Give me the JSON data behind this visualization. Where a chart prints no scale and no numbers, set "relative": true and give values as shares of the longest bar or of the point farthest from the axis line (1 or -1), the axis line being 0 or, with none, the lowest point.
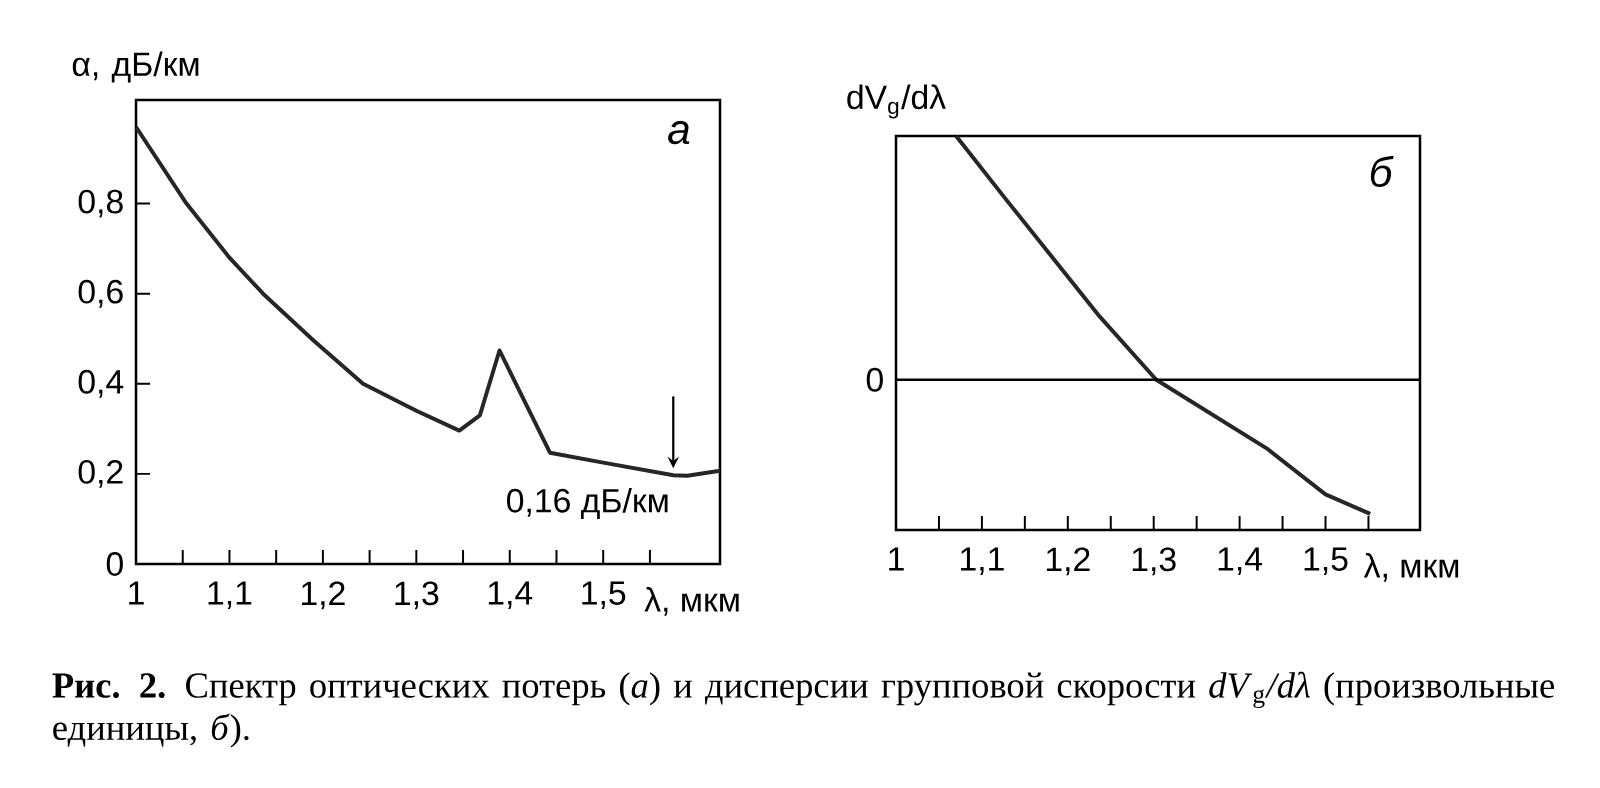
{
  "chart_data": [
    {
      "type": "line",
      "ylabel": "α, дБ/км",
      "xlabel": "λ, мкм",
      "x": [
        1.0,
        1.054,
        1.1,
        1.136,
        1.19,
        1.243,
        1.3,
        1.346,
        1.368,
        1.389,
        1.443,
        1.5,
        1.575,
        1.59,
        1.625
      ],
      "series": [
        {
          "color": "#262626",
          "values": [
            0.97,
            0.8,
            0.68,
            0.6,
            0.496,
            0.4,
            0.34,
            0.296,
            0.33,
            0.474,
            0.247,
            0.225,
            0.197,
            0.196,
            0.207
          ]
        }
      ],
      "xlim": [
        1,
        1.625
      ],
      "ylim": [
        0,
        1.03
      ],
      "xticks": [
        {
          "value": 1,
          "label": "1"
        },
        {
          "value": 1.05,
          "label": null
        },
        {
          "value": 1.1,
          "label": "1,1"
        },
        {
          "value": 1.15,
          "label": null
        },
        {
          "value": 1.2,
          "label": "1,2"
        },
        {
          "value": 1.25,
          "label": null
        },
        {
          "value": 1.3,
          "label": "1,3"
        },
        {
          "value": 1.35,
          "label": null
        },
        {
          "value": 1.4,
          "label": "1,4"
        },
        {
          "value": 1.45,
          "label": null
        },
        {
          "value": 1.5,
          "label": "1,5"
        },
        {
          "value": 1.55,
          "label": null
        }
      ],
      "yticks": [
        0,
        {
          "value": 0.2,
          "label": "0,2"
        },
        {
          "value": 0.4,
          "label": "0,4"
        },
        {
          "value": 0.6,
          "label": "0,6"
        },
        {
          "value": 0.8,
          "label": "0,8"
        }
      ],
      "annotations": [
        "а",
        {
          "text": "0,16 дБ/км",
          "x": 1.575,
          "y": 0.197
        }
      ]
    },
    {
      "type": "line",
      "ylabel": "dV$_{g}$/dλ",
      "xlabel": "λ, мкм",
      "relative": true,
      "x": [
        1.07,
        1.128,
        1.237,
        1.303,
        1.431,
        1.5,
        1.552
      ],
      "series": [
        {
          "color": "#262626",
          "values": [
            1,
            0.74,
            0.26,
            0,
            -0.28,
            -0.47,
            -0.55
          ]
        }
      ],
      "xlim": [
        1,
        1.61
      ],
      "xticks": [
        {
          "value": 1,
          "label": "1"
        },
        {
          "value": 1.05,
          "label": null
        },
        {
          "value": 1.1,
          "label": "1,1"
        },
        {
          "value": 1.15,
          "label": null
        },
        {
          "value": 1.2,
          "label": "1,2"
        },
        {
          "value": 1.25,
          "label": null
        },
        {
          "value": 1.3,
          "label": "1,3"
        },
        {
          "value": 1.35,
          "label": null
        },
        {
          "value": 1.4,
          "label": "1,4"
        },
        {
          "value": 1.45,
          "label": null
        },
        {
          "value": 1.5,
          "label": "1,5"
        },
        {
          "value": 1.55,
          "label": null
        }
      ],
      "ref_lines": [
        {
          "axis": "y",
          "value": 0,
          "label": "0"
        }
      ],
      "annotations": [
        "б",
        "**Рис. 2.** Спектр оптических потерь (*а*) и дисперсии групповой скорости *dV*$_{g}$*/dλ* (произвольные единицы, *б*)."
      ]
    }
  ]
}
